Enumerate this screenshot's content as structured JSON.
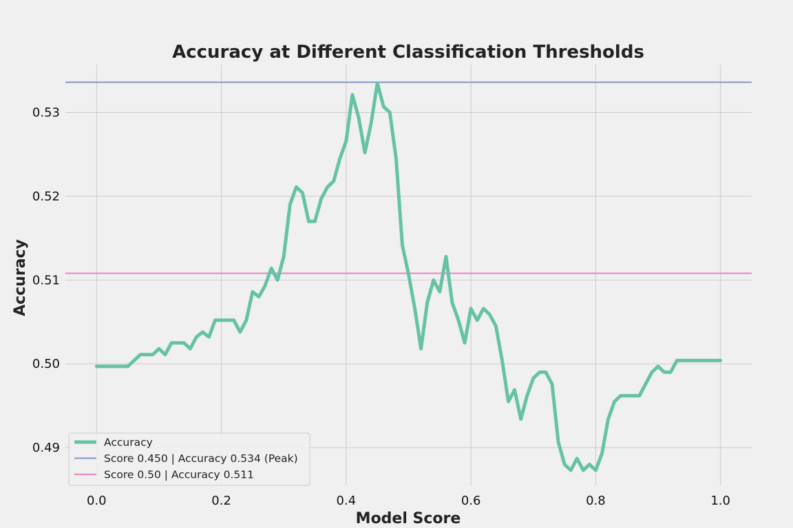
{
  "chart_data": {
    "type": "line",
    "title": "Accuracy at Different Classification Thresholds",
    "xlabel": "Model Score",
    "ylabel": "Accuracy",
    "xlim": [
      -0.05,
      1.05
    ],
    "ylim": [
      0.4855,
      0.5357
    ],
    "xticks": [
      0.0,
      0.2,
      0.4,
      0.6,
      0.8,
      1.0
    ],
    "xtick_labels": [
      "0.0",
      "0.2",
      "0.4",
      "0.6",
      "0.8",
      "1.0"
    ],
    "yticks": [
      0.49,
      0.5,
      0.51,
      0.52,
      0.53
    ],
    "ytick_labels": [
      "0.49",
      "0.50",
      "0.51",
      "0.52",
      "0.53"
    ],
    "grid": true,
    "legend_position": "lower-left",
    "series": [
      {
        "name": "Accuracy",
        "color": "#66c2a5",
        "x": [
          0.0,
          0.01,
          0.02,
          0.03,
          0.04,
          0.05,
          0.06,
          0.07,
          0.08,
          0.09,
          0.1,
          0.11,
          0.12,
          0.13,
          0.14,
          0.15,
          0.16,
          0.17,
          0.18,
          0.19,
          0.2,
          0.21,
          0.22,
          0.23,
          0.24,
          0.25,
          0.26,
          0.27,
          0.28,
          0.29,
          0.3,
          0.31,
          0.32,
          0.33,
          0.34,
          0.35,
          0.36,
          0.37,
          0.38,
          0.39,
          0.4,
          0.41,
          0.42,
          0.43,
          0.44,
          0.45,
          0.46,
          0.47,
          0.48,
          0.49,
          0.5,
          0.51,
          0.52,
          0.53,
          0.54,
          0.55,
          0.56,
          0.57,
          0.58,
          0.59,
          0.6,
          0.61,
          0.62,
          0.63,
          0.64,
          0.65,
          0.66,
          0.67,
          0.68,
          0.69,
          0.7,
          0.71,
          0.72,
          0.73,
          0.74,
          0.75,
          0.76,
          0.77,
          0.78,
          0.79,
          0.8,
          0.81,
          0.82,
          0.83,
          0.84,
          0.85,
          0.86,
          0.87,
          0.88,
          0.89,
          0.9,
          0.91,
          0.92,
          0.93,
          0.94,
          0.95,
          0.96,
          0.97,
          0.98,
          0.99,
          1.0
        ],
        "y": [
          0.4997,
          0.4997,
          0.4997,
          0.4997,
          0.4997,
          0.4997,
          0.5004,
          0.5011,
          0.5011,
          0.5011,
          0.5018,
          0.5011,
          0.5025,
          0.5025,
          0.5025,
          0.5018,
          0.5032,
          0.5038,
          0.5032,
          0.5052,
          0.5052,
          0.5052,
          0.5052,
          0.5038,
          0.5052,
          0.5086,
          0.508,
          0.5093,
          0.5114,
          0.51,
          0.5128,
          0.519,
          0.5211,
          0.5204,
          0.517,
          0.517,
          0.5197,
          0.5211,
          0.5218,
          0.5245,
          0.5266,
          0.5321,
          0.5294,
          0.5252,
          0.5287,
          0.5335,
          0.5307,
          0.53,
          0.5245,
          0.5142,
          0.5107,
          0.5066,
          0.5018,
          0.5073,
          0.51,
          0.5086,
          0.5128,
          0.5073,
          0.5052,
          0.5025,
          0.5066,
          0.5052,
          0.5066,
          0.5059,
          0.5045,
          0.5004,
          0.4955,
          0.4969,
          0.4934,
          0.4962,
          0.4983,
          0.499,
          0.499,
          0.4976,
          0.4907,
          0.488,
          0.4873,
          0.4887,
          0.4873,
          0.488,
          0.4873,
          0.4893,
          0.4934,
          0.4955,
          0.4962,
          0.4962,
          0.4962,
          0.4962,
          0.4976,
          0.499,
          0.4997,
          0.499,
          0.499,
          0.5004,
          0.5004,
          0.5004,
          0.5004,
          0.5004,
          0.5004,
          0.5004,
          0.5004
        ]
      }
    ],
    "reference_lines": [
      {
        "name": "Score 0.450 | Accuracy 0.534 (Peak)",
        "y": 0.5336,
        "color": "#8da0cb"
      },
      {
        "name": "Score 0.50 | Accuracy 0.511",
        "y": 0.5108,
        "color": "#e78ac3"
      }
    ]
  }
}
